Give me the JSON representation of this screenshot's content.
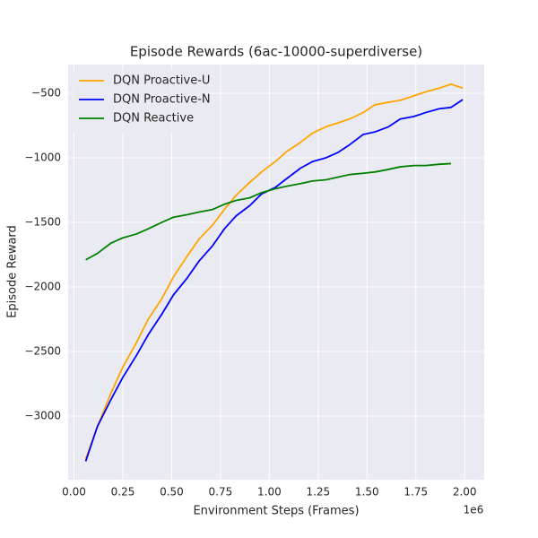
{
  "chart_data": {
    "type": "line",
    "title": "Episode Rewards (6ac-10000-superdiverse)",
    "x_label": "Environment Steps (Frames)",
    "y_label": "Episode Reward",
    "x_offset_label": "1e6",
    "x": [
      0.06,
      0.12,
      0.19,
      0.25,
      0.32,
      0.38,
      0.45,
      0.51,
      0.58,
      0.64,
      0.71,
      0.77,
      0.83,
      0.9,
      0.96,
      1.03,
      1.09,
      1.16,
      1.22,
      1.29,
      1.35,
      1.41,
      1.48,
      1.54,
      1.61,
      1.67,
      1.74,
      1.8,
      1.87,
      1.93,
      1.99
    ],
    "series": [
      {
        "name": "DQN Proactive-U",
        "color": "#ffa500",
        "values": [
          -3330,
          -3080,
          -2820,
          -2620,
          -2430,
          -2250,
          -2090,
          -1920,
          -1760,
          -1630,
          -1520,
          -1400,
          -1290,
          -1190,
          -1110,
          -1030,
          -950,
          -880,
          -810,
          -760,
          -730,
          -700,
          -650,
          -590,
          -570,
          -555,
          -520,
          -490,
          -460,
          -430,
          -460
        ]
      },
      {
        "name": "DQN Proactive-N",
        "color": "#0000ff",
        "values": [
          -3350,
          -3080,
          -2870,
          -2700,
          -2530,
          -2370,
          -2210,
          -2060,
          -1930,
          -1800,
          -1680,
          -1550,
          -1450,
          -1370,
          -1280,
          -1230,
          -1160,
          -1080,
          -1030,
          -1000,
          -960,
          -900,
          -820,
          -800,
          -760,
          -700,
          -680,
          -650,
          -620,
          -610,
          -550
        ]
      },
      {
        "name": "DQN Reactive",
        "color": "#008000",
        "values": [
          -1790,
          -1740,
          -1660,
          -1620,
          -1590,
          -1550,
          -1500,
          -1460,
          -1440,
          -1420,
          -1400,
          -1360,
          -1330,
          -1310,
          -1270,
          -1240,
          -1220,
          -1200,
          -1180,
          -1170,
          -1150,
          -1130,
          -1120,
          -1110,
          -1090,
          -1070,
          -1060,
          -1060,
          -1050,
          -1045,
          null
        ]
      }
    ],
    "xlim": [
      -0.03,
      2.1
    ],
    "ylim": [
      -3493,
      -278
    ],
    "xticks": [
      {
        "value": 0,
        "label": "0.00"
      },
      {
        "value": 0.25,
        "label": "0.25"
      },
      {
        "value": 0.5,
        "label": "0.50"
      },
      {
        "value": 0.75,
        "label": "0.75"
      },
      {
        "value": 1,
        "label": "1.00"
      },
      {
        "value": 1.25,
        "label": "1.25"
      },
      {
        "value": 1.5,
        "label": "1.50"
      },
      {
        "value": 1.75,
        "label": "1.75"
      },
      {
        "value": 2,
        "label": "2.00"
      }
    ],
    "yticks": [
      {
        "value": -3000,
        "label": "−3000"
      },
      {
        "value": -2500,
        "label": "−2500"
      },
      {
        "value": -2000,
        "label": "−2000"
      },
      {
        "value": -1500,
        "label": "−1500"
      },
      {
        "value": -1000,
        "label": "−1000"
      },
      {
        "value": -500,
        "label": "−500"
      }
    ],
    "grid": true,
    "legend": "upper left"
  }
}
